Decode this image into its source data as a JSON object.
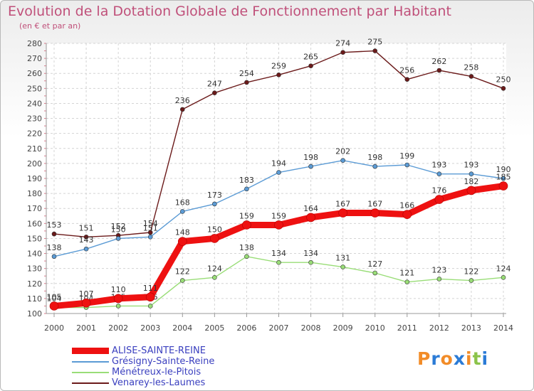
{
  "chart_data": {
    "type": "line",
    "title": "Evolution de la Dotation Globale de Fonctionnement par Habitant",
    "subtitle": "(en € et par an)",
    "categories": [
      "2000",
      "2001",
      "2002",
      "2003",
      "2004",
      "2005",
      "2006",
      "2007",
      "2008",
      "2009",
      "2010",
      "2011",
      "2012",
      "2013",
      "2014"
    ],
    "ylim": [
      100,
      280
    ],
    "yticks": [
      100,
      110,
      120,
      130,
      140,
      150,
      160,
      170,
      180,
      190,
      200,
      210,
      220,
      230,
      240,
      250,
      260,
      270,
      280
    ],
    "grid": true,
    "legend_position": "bottom-left",
    "series": [
      {
        "name": "Venarey-les-Laumes",
        "color": "#6b1a1a",
        "values": [
          153,
          151,
          152,
          154,
          236,
          247,
          254,
          259,
          265,
          274,
          275,
          256,
          262,
          258,
          250
        ]
      },
      {
        "name": "Grésigny-Sainte-Reine",
        "color": "#5b9bd5",
        "values": [
          138,
          143,
          150,
          151,
          168,
          173,
          183,
          194,
          198,
          202,
          198,
          199,
          193,
          193,
          190
        ]
      },
      {
        "name": "Ménétreux-le-Pitois",
        "color": "#99dd77",
        "values": [
          104,
          104,
          105,
          105,
          122,
          124,
          138,
          134,
          134,
          131,
          127,
          121,
          123,
          122,
          124
        ]
      },
      {
        "name": "ALISE-SAINTE-REINE",
        "color": "#ee1111",
        "values": [
          105,
          107,
          110,
          111,
          148,
          150,
          159,
          159,
          164,
          167,
          167,
          166,
          176,
          182,
          185
        ]
      }
    ],
    "legend_order": [
      "ALISE-SAINTE-REINE",
      "Grésigny-Sainte-Reine",
      "Ménétreux-le-Pitois",
      "Venarey-les-Laumes"
    ]
  },
  "logo": {
    "text": "Proxiti",
    "colors": [
      "#f28c28",
      "#2b7bd6",
      "#f28c28",
      "#2b7bd6",
      "#f28c28",
      "#8bc34a",
      "#2b7bd6"
    ]
  }
}
